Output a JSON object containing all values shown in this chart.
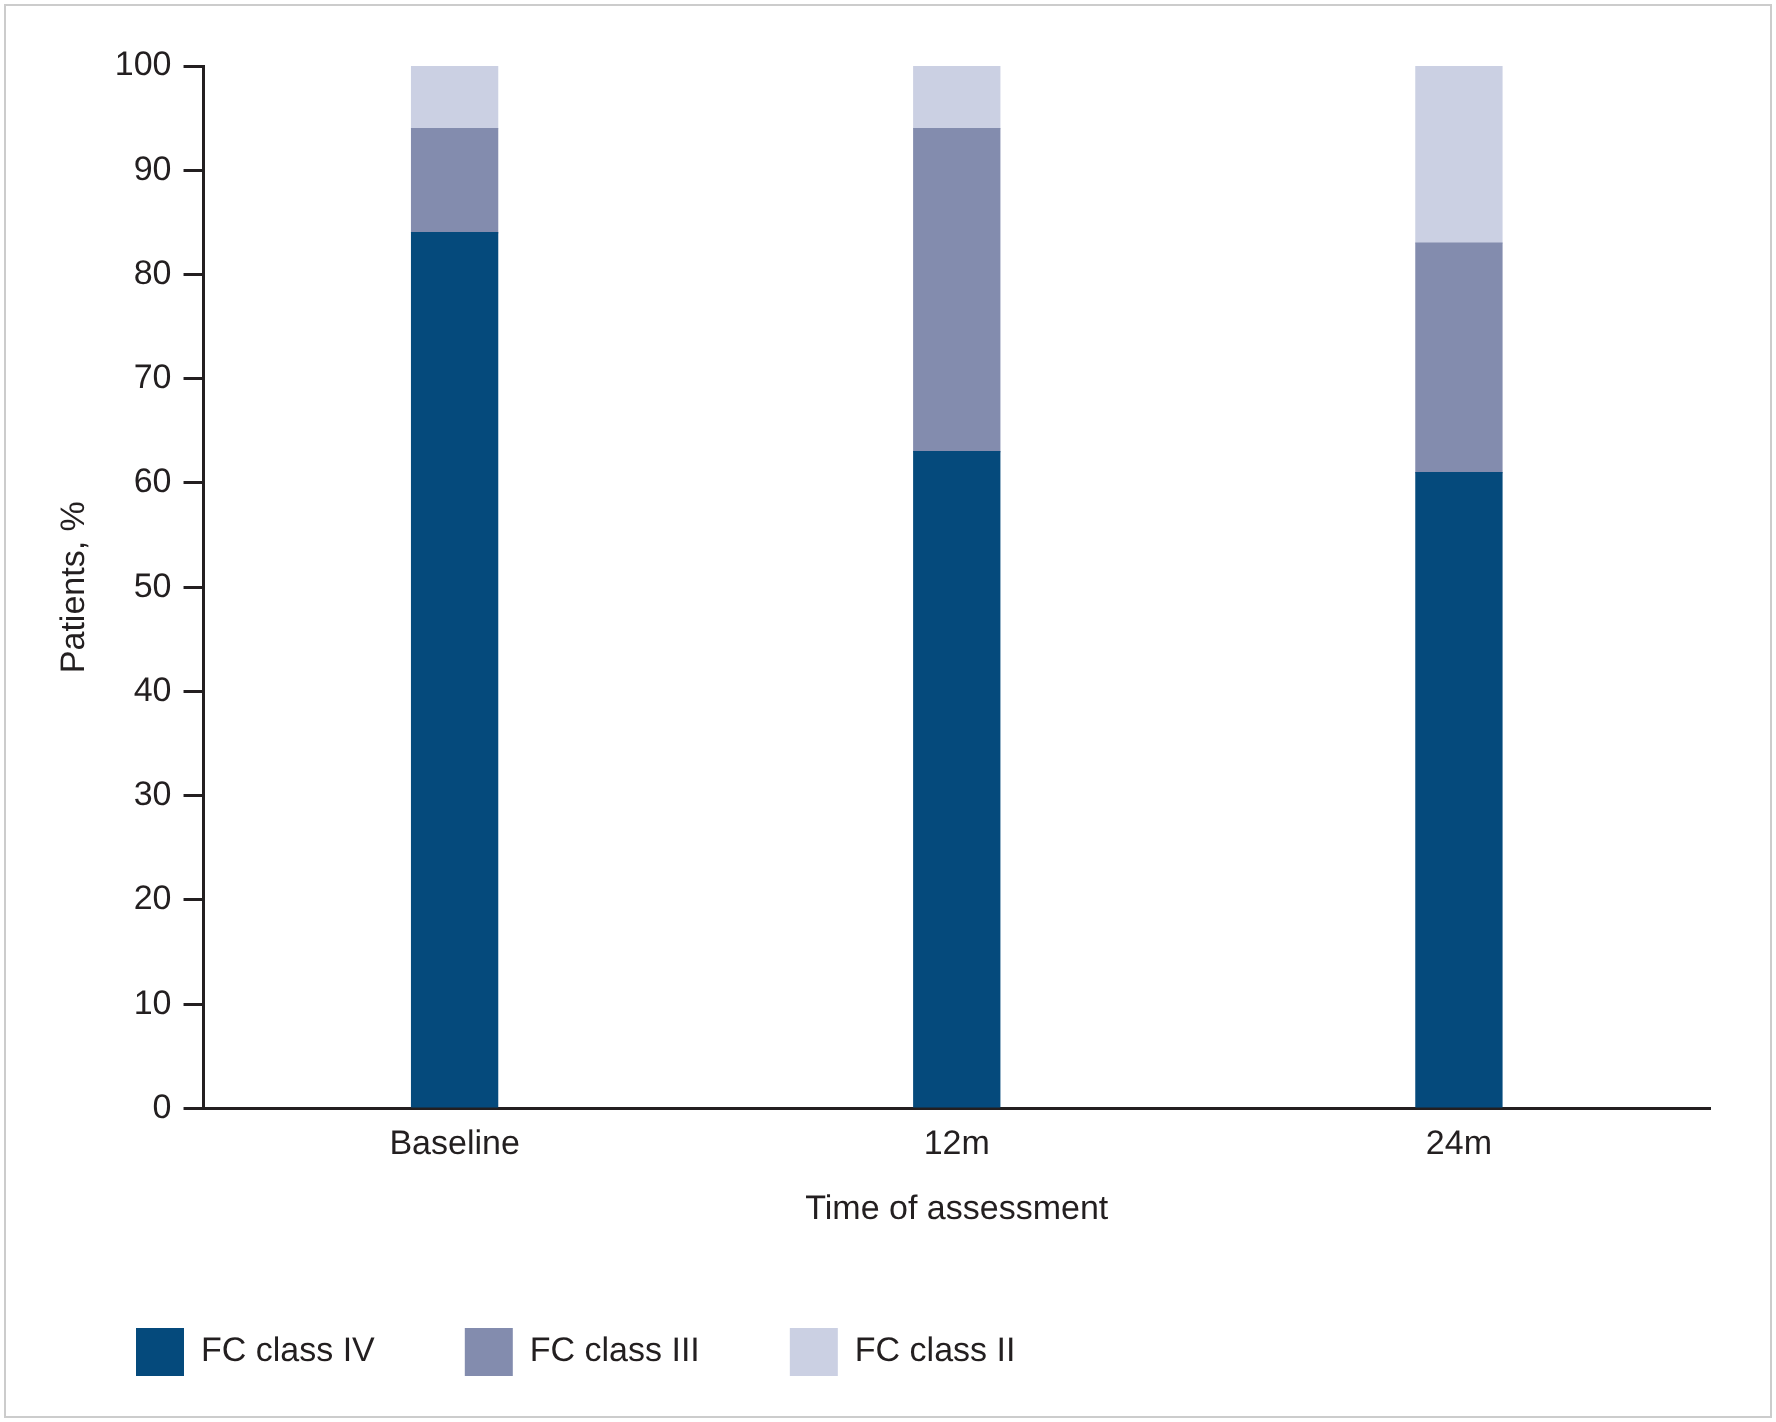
{
  "chart_data": {
    "type": "bar",
    "stacked": true,
    "xlabel": "Time of assessment",
    "ylabel": "Patients, %",
    "categories": [
      "Baseline",
      "12m",
      "24m"
    ],
    "series": [
      {
        "name": "FC class IV",
        "color": "#054a7c",
        "values": [
          84,
          63,
          61
        ]
      },
      {
        "name": "FC class III",
        "color": "#838cae",
        "values": [
          10,
          31,
          22
        ]
      },
      {
        "name": "FC class II",
        "color": "#cbd0e3",
        "values": [
          6,
          6,
          17
        ]
      }
    ],
    "ylim": [
      0,
      100
    ],
    "yticks": [
      0,
      10,
      20,
      30,
      40,
      50,
      60,
      70,
      80,
      90,
      100
    ],
    "grid": false,
    "legend": "bottom"
  }
}
